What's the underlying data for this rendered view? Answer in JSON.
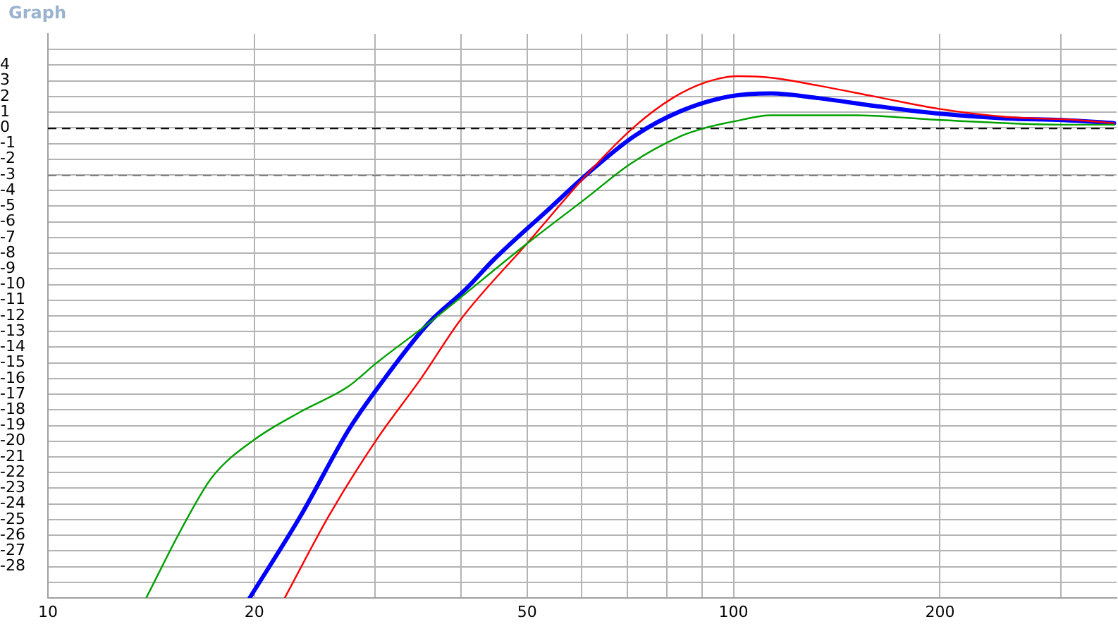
{
  "chart_data": {
    "type": "line",
    "title": "Graph",
    "log": "x",
    "grid": true,
    "legend": false,
    "marker": "none",
    "line_style": "solid",
    "xlim": [
      10,
      362
    ],
    "xticks": [
      10,
      20,
      {
        "value": 30,
        "label": null
      },
      {
        "value": 40,
        "label": null
      },
      50,
      {
        "value": 60,
        "label": null
      },
      {
        "value": 70,
        "label": null
      },
      {
        "value": 80,
        "label": null
      },
      {
        "value": 90,
        "label": null
      },
      100,
      200,
      {
        "value": 300,
        "label": null
      }
    ],
    "ylim": [
      -30,
      6
    ],
    "yticks": [
      {
        "value": -29,
        "label": null
      },
      -28,
      -27,
      -26,
      -25,
      -24,
      -23,
      -22,
      -21,
      -20,
      -19,
      -18,
      -17,
      -16,
      -15,
      -14,
      -13,
      -12,
      -11,
      -10,
      -9,
      -8,
      -7,
      -6,
      -5,
      -4,
      -3,
      -2,
      -1,
      0,
      1,
      2,
      3,
      4,
      {
        "value": 5,
        "label": null
      }
    ],
    "ref_lines": [
      {
        "axis": "y",
        "value": 0,
        "label": null,
        "color": "#000000",
        "line_style": "dashed"
      },
      {
        "axis": "y",
        "value": -3,
        "label": null,
        "color": "#808080",
        "line_style": "dashed"
      }
    ],
    "series": [
      {
        "color": "#00a000",
        "x": [
          13.91,
          15.79,
          17.35,
          20.0,
          23.41,
          27.43,
          30.15,
          35.84,
          49.93,
          61.33,
          70.7,
          84.06,
          90.97,
          100,
          113.5,
          150.8,
          200.3,
          301.8,
          359
        ],
        "values": [
          -30,
          -25.3,
          -22.3,
          -19.9,
          -18.1,
          -16.5,
          -15.0,
          -12.5,
          -7.4,
          -4.4,
          -2.3,
          -0.5,
          0,
          0.4,
          0.8,
          0.8,
          0.5,
          0.2,
          0.2
        ]
      },
      {
        "color": "#ff0000",
        "x": [
          22.15,
          25.74,
          30.15,
          35.0,
          40.05,
          49.93,
          61.33,
          71.78,
          81.47,
          90.97,
          101.6,
          113.5,
          132.9,
          160.6,
          200.3,
          249.7,
          316.4,
          359
        ],
        "values": [
          -30,
          -24.7,
          -19.9,
          -16.0,
          -12.2,
          -7.4,
          -2.9,
          0.1,
          1.9,
          2.9,
          3.3,
          3.2,
          2.7,
          2.0,
          1.2,
          0.7,
          0.5,
          0.3
        ]
      },
      {
        "color": "#0000ff",
        "x": [
          19.69,
          23.41,
          27.43,
          30.15,
          35.84,
          40.68,
          44.72,
          54.04,
          61.33,
          71.78,
          84.06,
          98.45,
          113.5,
          132.9,
          160.6,
          200.3,
          249.7,
          301.8,
          359
        ],
        "values": [
          -30,
          -24.7,
          -19.3,
          -16.7,
          -12.5,
          -10.3,
          -8.4,
          -5.1,
          -2.9,
          -0.5,
          1.1,
          2.0,
          2.2,
          1.9,
          1.4,
          0.9,
          0.6,
          0.5,
          0.3
        ]
      }
    ]
  }
}
